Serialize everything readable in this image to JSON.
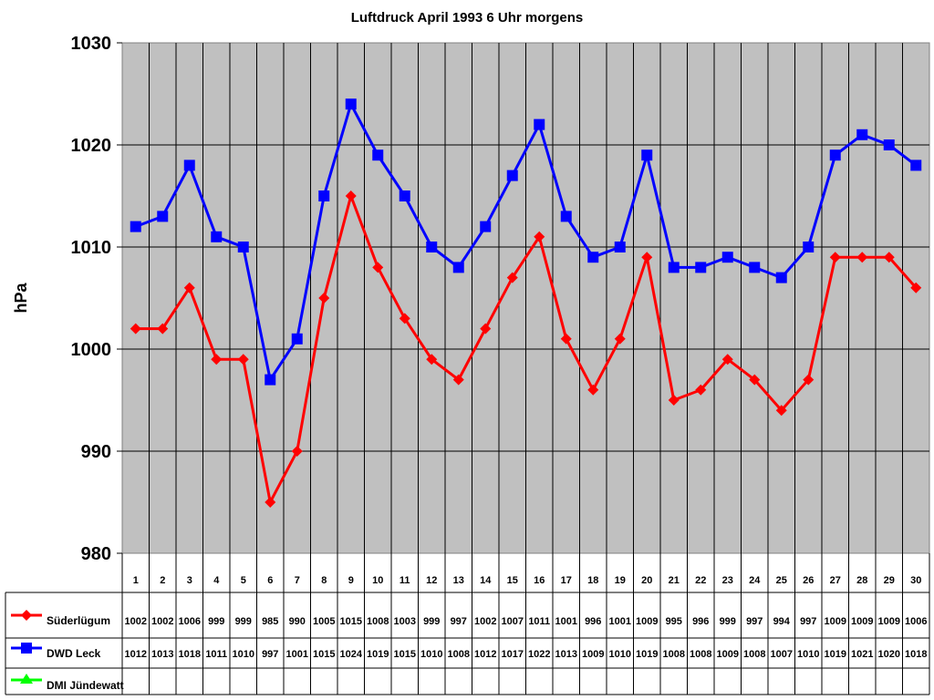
{
  "chart_data": {
    "type": "line",
    "title": "Luftdruck April 1993 6 Uhr morgens",
    "xlabel": "",
    "ylabel": "hPa",
    "ylim": [
      980,
      1030
    ],
    "yticks": [
      980,
      990,
      1000,
      1010,
      1020,
      1030
    ],
    "grid": true,
    "legend_position": "data-table-left",
    "categories": [
      "1",
      "2",
      "3",
      "4",
      "5",
      "6",
      "7",
      "8",
      "9",
      "10",
      "11",
      "12",
      "13",
      "14",
      "15",
      "16",
      "17",
      "18",
      "19",
      "20",
      "21",
      "22",
      "23",
      "24",
      "25",
      "26",
      "27",
      "28",
      "29",
      "30"
    ],
    "series": [
      {
        "name": "Süderlügum",
        "color": "#ff0000",
        "marker": "diamond",
        "values": [
          1002,
          1002,
          1006,
          999,
          999,
          985,
          990,
          1005,
          1015,
          1008,
          1003,
          999,
          997,
          1002,
          1007,
          1011,
          1001,
          996,
          1001,
          1009,
          995,
          996,
          999,
          997,
          994,
          997,
          1009,
          1009,
          1009,
          1006
        ]
      },
      {
        "name": "DWD Leck",
        "color": "#0000ff",
        "marker": "square",
        "values": [
          1012,
          1013,
          1018,
          1011,
          1010,
          997,
          1001,
          1015,
          1024,
          1019,
          1015,
          1010,
          1008,
          1012,
          1017,
          1022,
          1013,
          1009,
          1010,
          1019,
          1008,
          1008,
          1009,
          1008,
          1007,
          1010,
          1019,
          1021,
          1020,
          1018
        ]
      },
      {
        "name": "DMI Jündewatt",
        "color": "#00ff00",
        "marker": "triangle",
        "values": []
      }
    ]
  },
  "colors": {
    "plot_bg": "#c0c0c0",
    "grid": "#000000"
  }
}
